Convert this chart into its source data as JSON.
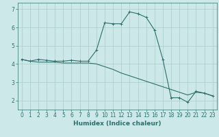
{
  "xlabel": "Humidex (Indice chaleur)",
  "background_color": "#cce8e8",
  "line_color": "#2e6e6a",
  "grid_color": "#aacccc",
  "xlim": [
    -0.5,
    23.5
  ],
  "ylim": [
    1.5,
    7.35
  ],
  "yticks": [
    2,
    3,
    4,
    5,
    6,
    7
  ],
  "xticks": [
    0,
    1,
    2,
    3,
    4,
    5,
    6,
    7,
    8,
    9,
    10,
    11,
    12,
    13,
    14,
    15,
    16,
    17,
    18,
    19,
    20,
    21,
    22,
    23
  ],
  "curve1_x": [
    0,
    1,
    2,
    3,
    4,
    5,
    6,
    7,
    8,
    9,
    10,
    11,
    12,
    13,
    14,
    15,
    16,
    17,
    18,
    19,
    20,
    21,
    22,
    23
  ],
  "curve1_y": [
    4.25,
    4.15,
    4.25,
    4.2,
    4.15,
    4.15,
    4.2,
    4.15,
    4.15,
    4.75,
    6.25,
    6.2,
    6.2,
    6.85,
    6.75,
    6.55,
    5.85,
    4.25,
    2.15,
    2.15,
    1.9,
    2.5,
    2.4,
    2.25
  ],
  "curve2_x": [
    0,
    1,
    2,
    3,
    4,
    5,
    6,
    7,
    8,
    9,
    10,
    11,
    12,
    13,
    14,
    15,
    16,
    17,
    18,
    19,
    20,
    21,
    22,
    23
  ],
  "curve2_y": [
    4.25,
    4.15,
    4.1,
    4.1,
    4.1,
    4.05,
    4.05,
    4.05,
    4.05,
    4.0,
    3.85,
    3.7,
    3.5,
    3.35,
    3.2,
    3.05,
    2.9,
    2.75,
    2.6,
    2.45,
    2.3,
    2.45,
    2.4,
    2.25
  ],
  "tick_fontsize": 5.5,
  "xlabel_fontsize": 6.5
}
